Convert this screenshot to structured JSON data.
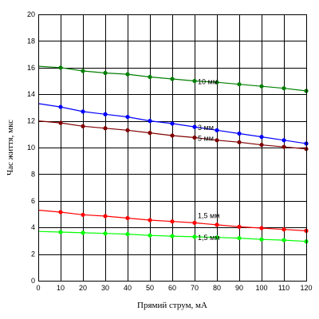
{
  "chart_data": {
    "type": "line",
    "title": "",
    "xlabel": "Прямий струм, мА",
    "ylabel": "Час життя, мкс",
    "xlim": [
      0,
      120
    ],
    "ylim": [
      0,
      20
    ],
    "xticks": [
      "0",
      "10",
      "20",
      "30",
      "40",
      "50",
      "60",
      "70",
      "80",
      "90",
      "100",
      "110",
      "120"
    ],
    "yticks": [
      "0",
      "2",
      "4",
      "6",
      "8",
      "10",
      "12",
      "14",
      "16",
      "18",
      "20"
    ],
    "grid": true,
    "series": [
      {
        "name": "10 мм",
        "color": "#008000",
        "x": [
          0,
          10,
          20,
          30,
          40,
          50,
          60,
          70,
          80,
          90,
          100,
          110,
          120
        ],
        "y": [
          16.1,
          16.0,
          15.75,
          15.6,
          15.5,
          15.3,
          15.15,
          15.0,
          14.9,
          14.75,
          14.6,
          14.45,
          14.25
        ]
      },
      {
        "name": "3 мм",
        "color": "#0000ff",
        "x": [
          0,
          10,
          20,
          30,
          40,
          50,
          60,
          70,
          80,
          90,
          100,
          110,
          120
        ],
        "y": [
          13.3,
          13.05,
          12.7,
          12.5,
          12.3,
          12.0,
          11.8,
          11.55,
          11.3,
          11.05,
          10.8,
          10.55,
          10.3
        ]
      },
      {
        "name": "5 мм",
        "color": "#800000",
        "x": [
          0,
          10,
          20,
          30,
          40,
          50,
          60,
          70,
          80,
          90,
          100,
          110,
          120
        ],
        "y": [
          12.0,
          11.85,
          11.6,
          11.45,
          11.3,
          11.1,
          10.9,
          10.75,
          10.55,
          10.4,
          10.2,
          10.05,
          9.9
        ]
      },
      {
        "name": "1,5 мм",
        "color": "#ff0000",
        "x": [
          0,
          10,
          20,
          30,
          40,
          50,
          60,
          70,
          80,
          90,
          100,
          110,
          120
        ],
        "y": [
          5.3,
          5.15,
          4.95,
          4.85,
          4.7,
          4.55,
          4.45,
          4.35,
          4.2,
          4.05,
          3.95,
          3.85,
          3.75
        ]
      },
      {
        "name": "1,5 мм",
        "color": "#00ff00",
        "x": [
          0,
          10,
          20,
          30,
          40,
          50,
          60,
          70,
          80,
          90,
          100,
          110,
          120
        ],
        "y": [
          3.7,
          3.65,
          3.6,
          3.55,
          3.5,
          3.4,
          3.35,
          3.3,
          3.25,
          3.2,
          3.1,
          3.05,
          2.95
        ]
      }
    ]
  }
}
